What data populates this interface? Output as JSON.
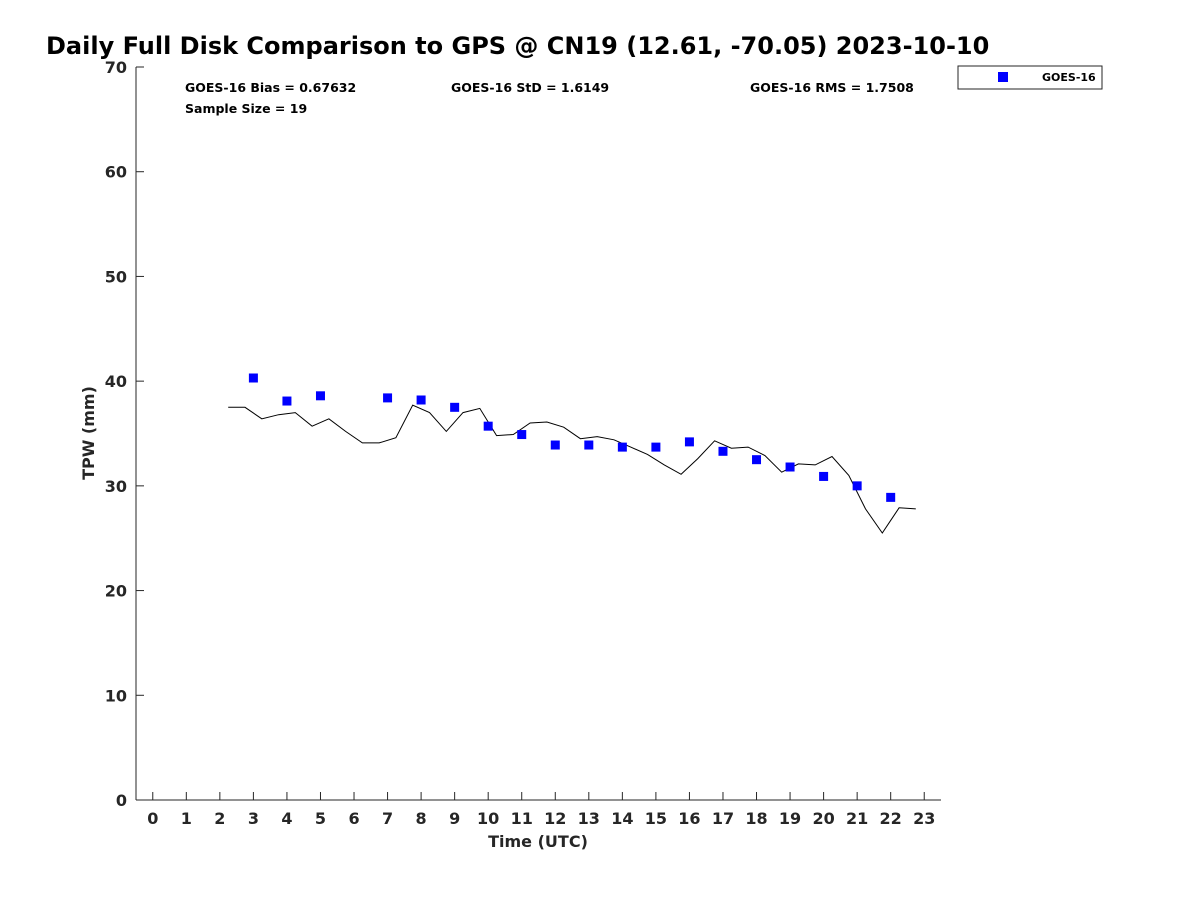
{
  "chart_data": {
    "type": "scatter",
    "title": "Daily Full Disk Comparison to GPS @ CN19 (12.61, -70.05) 2023-10-10",
    "xlabel": "Time (UTC)",
    "ylabel": "TPW (mm)",
    "xlim": [
      -0.5,
      23.5
    ],
    "ylim": [
      0,
      70
    ],
    "x_ticks": [
      "0",
      "1",
      "2",
      "3",
      "4",
      "5",
      "6",
      "7",
      "8",
      "9",
      "10",
      "11",
      "12",
      "13",
      "14",
      "15",
      "16",
      "17",
      "18",
      "19",
      "20",
      "21",
      "22",
      "23"
    ],
    "y_ticks": [
      "0",
      "10",
      "20",
      "30",
      "40",
      "50",
      "60",
      "70"
    ],
    "stats": {
      "bias": "GOES-16 Bias = 0.67632",
      "std": "GOES-16 StD = 1.6149",
      "rms": "GOES-16 RMS = 1.7508",
      "sample": "Sample Size = 19"
    },
    "legend": {
      "position": "top-right",
      "entries": [
        "GOES-16"
      ]
    },
    "series": [
      {
        "name": "GOES-16",
        "kind": "scatter",
        "color": "#0000ff",
        "x": [
          3,
          4,
          5,
          7,
          8,
          9,
          10,
          11,
          12,
          13,
          14,
          15,
          16,
          17,
          18,
          19,
          20,
          21,
          22
        ],
        "y": [
          40.3,
          38.1,
          38.6,
          38.4,
          38.2,
          37.5,
          35.7,
          34.9,
          33.9,
          33.9,
          33.7,
          33.7,
          34.2,
          33.3,
          32.5,
          31.8,
          30.9,
          30.0,
          28.9
        ]
      },
      {
        "kind": "line",
        "color": "#000000",
        "x": [
          2.25,
          2.75,
          3.25,
          3.75,
          4.25,
          4.75,
          5.25,
          5.75,
          6.25,
          6.75,
          7.25,
          7.75,
          8.25,
          8.75,
          9.25,
          9.75,
          10.25,
          10.75,
          11.25,
          11.75,
          12.25,
          12.75,
          13.25,
          13.75,
          14.25,
          14.75,
          15.25,
          15.75,
          16.25,
          16.75,
          17.25,
          17.75,
          18.25,
          18.75,
          19.25,
          19.75,
          20.25,
          20.75,
          21.25,
          21.75,
          22.25,
          22.75
        ],
        "y": [
          37.5,
          37.5,
          36.4,
          36.8,
          37.0,
          35.7,
          36.4,
          35.2,
          34.1,
          34.1,
          34.6,
          37.7,
          37.0,
          35.2,
          37.0,
          37.4,
          34.8,
          34.9,
          36.0,
          36.1,
          35.6,
          34.5,
          34.7,
          34.4,
          33.7,
          33.0,
          32.0,
          31.1,
          32.6,
          34.3,
          33.6,
          33.7,
          32.9,
          31.3,
          32.1,
          32.0,
          32.8,
          31.0,
          27.8,
          25.5,
          27.9,
          27.8
        ]
      }
    ],
    "grid": false
  }
}
